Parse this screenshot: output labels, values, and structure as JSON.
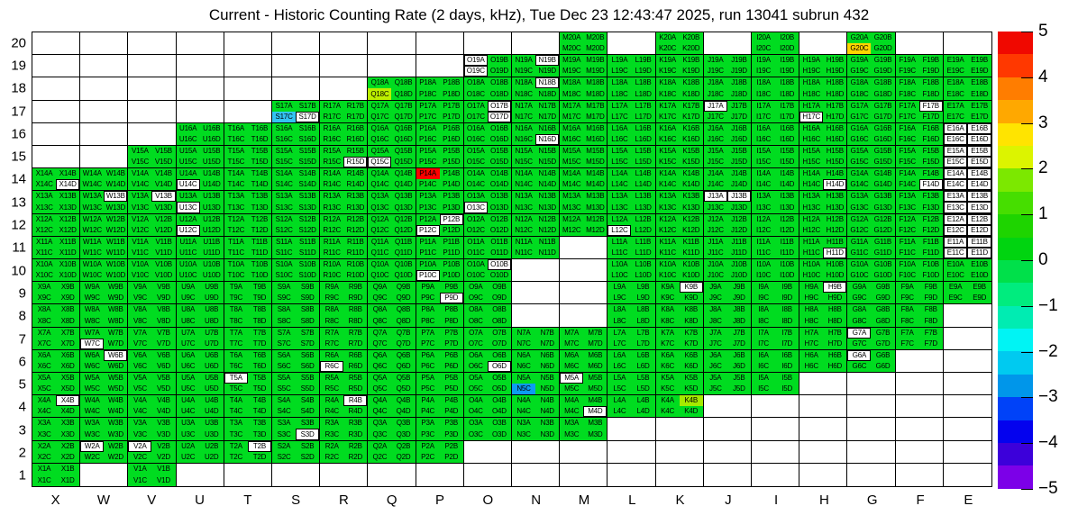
{
  "title": "Current - Historic Counting Rate (2 days, kHz), Tue Dec 23 12:43:47 2025, run 13041 subrun 432",
  "chart_data": {
    "type": "heatmap",
    "title": "Current - Historic Counting Rate (2 days, kHz), Tue Dec 23 12:43:47 2025, run 13041 subrun 432",
    "x_axis_labels": [
      "X",
      "W",
      "V",
      "U",
      "T",
      "S",
      "R",
      "Q",
      "P",
      "O",
      "N",
      "M",
      "L",
      "K",
      "J",
      "I",
      "H",
      "G",
      "F",
      "E"
    ],
    "y_axis_labels": [
      "20",
      "19",
      "18",
      "17",
      "16",
      "15",
      "14",
      "13",
      "12",
      "11",
      "10",
      "9",
      "8",
      "7",
      "6",
      "5",
      "4",
      "3",
      "2",
      "1"
    ],
    "subcell_order": [
      "A",
      "B",
      "C",
      "D"
    ],
    "value_scale": {
      "min": -5,
      "max": 5
    },
    "grid_on": true,
    "legend_position": "right",
    "colorbar_ticks": [
      "5",
      "4",
      "3",
      "2",
      "1",
      "0",
      "−1",
      "−2",
      "−3",
      "−4",
      "−5"
    ],
    "colorbar_bands_top_to_bottom": [
      "#F00800",
      "#FF3800",
      "#FF7D00",
      "#FFA800",
      "#FFE400",
      "#DCF400",
      "#7CE800",
      "#46DE00",
      "#1ED400",
      "#00D410",
      "#00E04A",
      "#00EC7E",
      "#00ECB2",
      "#00F4F4",
      "#00CAF0",
      "#0096EA",
      "#0042F8",
      "#0402EE",
      "#3C00DA",
      "#7C00E8"
    ],
    "default_bin_color": "#00DC20",
    "empty_cell_color": "#FFFFFF",
    "rows_present_columns": {
      "20": [
        "M",
        "K",
        "I",
        "G"
      ],
      "19": [
        "O",
        "N",
        "M",
        "L",
        "K",
        "J",
        "I",
        "H",
        "G",
        "F",
        "E"
      ],
      "18": [
        "Q",
        "P",
        "O",
        "N",
        "M",
        "L",
        "K",
        "J",
        "I",
        "H",
        "G",
        "F",
        "E"
      ],
      "17": [
        "S",
        "R",
        "Q",
        "P",
        "O",
        "N",
        "M",
        "L",
        "K",
        "J",
        "I",
        "H",
        "G",
        "F",
        "E"
      ],
      "16": [
        "U",
        "T",
        "S",
        "R",
        "Q",
        "P",
        "O",
        "N",
        "M",
        "L",
        "K",
        "J",
        "I",
        "H",
        "G",
        "F",
        "E"
      ],
      "15": [
        "V",
        "U",
        "T",
        "S",
        "R",
        "Q",
        "P",
        "O",
        "N",
        "M",
        "L",
        "K",
        "J",
        "I",
        "H",
        "G",
        "F",
        "E"
      ],
      "14": [
        "X",
        "W",
        "V",
        "U",
        "T",
        "S",
        "R",
        "Q",
        "P",
        "O",
        "N",
        "M",
        "L",
        "K",
        "J",
        "I",
        "H",
        "G",
        "F",
        "E"
      ],
      "13": [
        "X",
        "W",
        "V",
        "U",
        "T",
        "S",
        "R",
        "Q",
        "P",
        "O",
        "N",
        "M",
        "L",
        "K",
        "J",
        "I",
        "H",
        "G",
        "F",
        "E"
      ],
      "12": [
        "X",
        "W",
        "V",
        "U",
        "T",
        "S",
        "R",
        "Q",
        "P",
        "O",
        "N",
        "M",
        "L",
        "K",
        "J",
        "I",
        "H",
        "G",
        "F",
        "E"
      ],
      "11": [
        "X",
        "W",
        "V",
        "U",
        "T",
        "S",
        "R",
        "Q",
        "P",
        "O",
        "N",
        "L",
        "K",
        "J",
        "I",
        "H",
        "G",
        "F",
        "E"
      ],
      "10": [
        "X",
        "W",
        "V",
        "U",
        "T",
        "S",
        "R",
        "Q",
        "P",
        "O",
        "L",
        "K",
        "J",
        "I",
        "H",
        "G",
        "F",
        "E"
      ],
      "9": [
        "X",
        "W",
        "V",
        "U",
        "T",
        "S",
        "R",
        "Q",
        "P",
        "O",
        "L",
        "K",
        "J",
        "I",
        "H",
        "G",
        "F",
        "E"
      ],
      "8": [
        "X",
        "W",
        "V",
        "U",
        "T",
        "S",
        "R",
        "Q",
        "P",
        "O",
        "L",
        "K",
        "J",
        "I",
        "H",
        "G",
        "F"
      ],
      "7": [
        "X",
        "W",
        "V",
        "U",
        "T",
        "S",
        "R",
        "Q",
        "P",
        "O",
        "N",
        "M",
        "L",
        "K",
        "J",
        "I",
        "H",
        "G",
        "F"
      ],
      "6": [
        "X",
        "W",
        "V",
        "U",
        "T",
        "S",
        "R",
        "Q",
        "P",
        "O",
        "N",
        "M",
        "L",
        "K",
        "J",
        "I",
        "H",
        "G"
      ],
      "5": [
        "X",
        "W",
        "V",
        "U",
        "T",
        "S",
        "R",
        "Q",
        "P",
        "O",
        "N",
        "M",
        "L",
        "K",
        "J",
        "I"
      ],
      "4": [
        "X",
        "W",
        "V",
        "U",
        "T",
        "S",
        "R",
        "Q",
        "P",
        "O",
        "N",
        "M",
        "L",
        "K"
      ],
      "3": [
        "X",
        "W",
        "V",
        "U",
        "T",
        "S",
        "R",
        "Q",
        "P",
        "O",
        "N",
        "M"
      ],
      "2": [
        "X",
        "W",
        "V",
        "U",
        "T",
        "S",
        "R",
        "Q",
        "P"
      ],
      "1": [
        "X",
        "V"
      ]
    },
    "white_bins": [
      "O19A",
      "O19C",
      "N19B",
      "N18B",
      "S17D",
      "O17B",
      "O17D",
      "J17A",
      "H17C",
      "F17B",
      "N16D",
      "E16A",
      "E16B",
      "E16C",
      "E16D",
      "R15D",
      "Q15C",
      "E15A",
      "E15B",
      "E15C",
      "E15D",
      "X14D",
      "U14C",
      "H14D",
      "F14D",
      "E14A",
      "E14B",
      "E14C",
      "E14D",
      "W13B",
      "V13B",
      "U13C",
      "O13C",
      "J13A",
      "J13B",
      "E13A",
      "E13B",
      "E13C",
      "E13D",
      "U12C",
      "P12B",
      "P12C",
      "L12C",
      "E12A",
      "E12B",
      "E12C",
      "E12D",
      "H11D",
      "E11A",
      "E11B",
      "E11C",
      "E11D",
      "P10C",
      "O10B",
      "P9D",
      "K9B",
      "H9B",
      "W7C",
      "G7A",
      "W6B",
      "R6C",
      "O6D",
      "G6A",
      "T5A",
      "M5A",
      "X4B",
      "R4B",
      "M4D",
      "S3D",
      "W2A",
      "V2A",
      "T2B"
    ],
    "colored_bins": {
      "P14A": "#FF0000",
      "G20C": "#FFD400",
      "Q18C": "#BCEE00",
      "K4B": "#A6EA00",
      "S17C": "#33C4F2",
      "N5C": "#0C9CF2"
    }
  }
}
